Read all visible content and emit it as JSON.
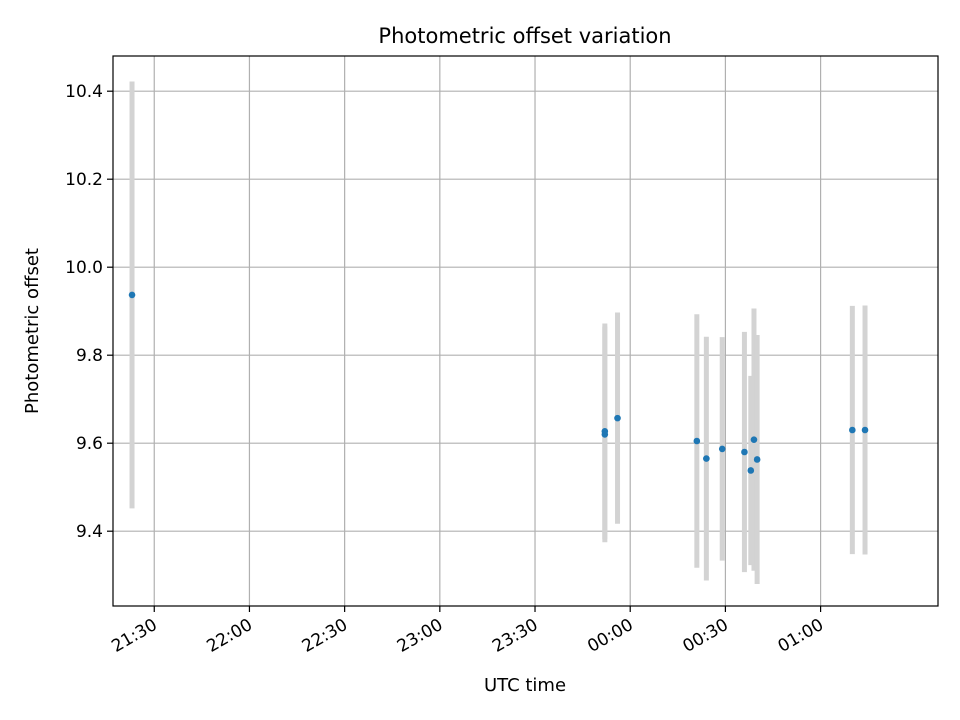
{
  "chart_data": {
    "type": "scatter",
    "title": "Photometric offset variation",
    "xlabel": "UTC time",
    "ylabel": "Photometric offset",
    "grid": true,
    "x_axis": {
      "kind": "time",
      "range": [
        "21:17",
        "01:37"
      ],
      "ticks": [
        "21:30",
        "22:00",
        "22:30",
        "23:00",
        "23:30",
        "00:00",
        "00:30",
        "01:00"
      ]
    },
    "y_axis": {
      "range": [
        9.23,
        10.48
      ],
      "ticks": [
        "9.4",
        "9.6",
        "9.8",
        "10.0",
        "10.2",
        "10.4"
      ]
    },
    "colors": {
      "point": "#1f77b4",
      "errorbar": "#d3d3d3",
      "grid": "#b0b0b0"
    },
    "points": [
      {
        "x": "21:23",
        "y": 9.937,
        "yerr": 0.485
      },
      {
        "x": "23:52",
        "y": 9.62,
        "yerr": 0.245
      },
      {
        "x": "23:52",
        "y": 9.627,
        "yerr": 0.245
      },
      {
        "x": "23:56",
        "y": 9.657,
        "yerr": 0.24
      },
      {
        "x": "00:21",
        "y": 9.605,
        "yerr": 0.288
      },
      {
        "x": "00:24",
        "y": 9.565,
        "yerr": 0.277
      },
      {
        "x": "00:29",
        "y": 9.587,
        "yerr": 0.254
      },
      {
        "x": "00:36",
        "y": 9.58,
        "yerr": 0.273
      },
      {
        "x": "00:38",
        "y": 9.538,
        "yerr": 0.215
      },
      {
        "x": "00:39",
        "y": 9.608,
        "yerr": 0.298
      },
      {
        "x": "00:40",
        "y": 9.563,
        "yerr": 0.283
      },
      {
        "x": "01:10",
        "y": 9.63,
        "yerr": 0.282
      },
      {
        "x": "01:14",
        "y": 9.63,
        "yerr": 0.283
      }
    ]
  }
}
